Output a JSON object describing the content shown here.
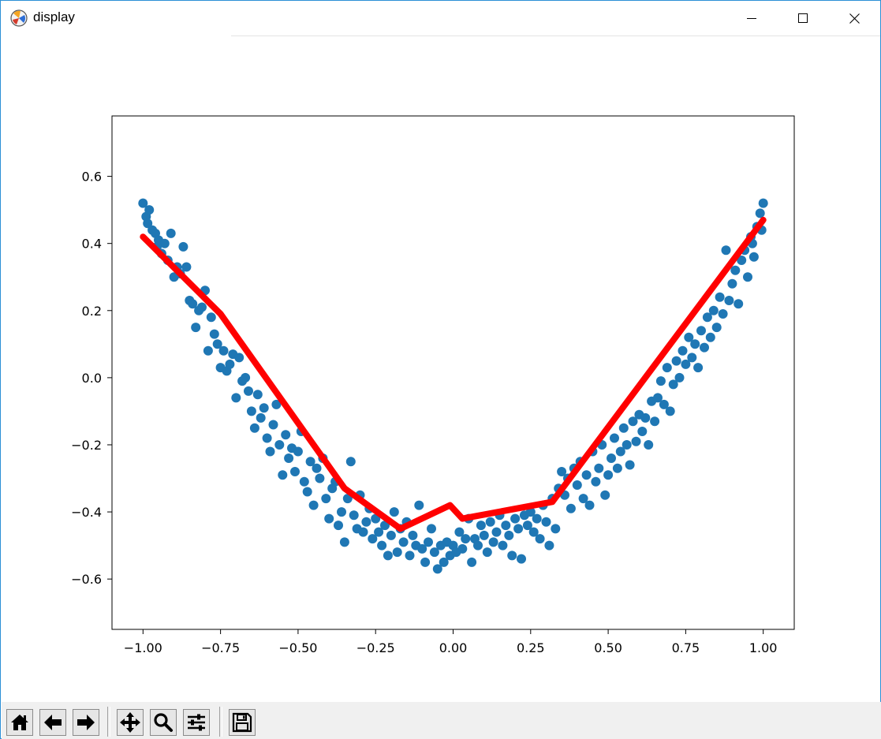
{
  "window": {
    "title": "display",
    "icons": {
      "app": "matplotlib-app-icon",
      "minimize": "minimize-icon",
      "maximize": "maximize-icon",
      "close": "close-icon"
    }
  },
  "toolbar": {
    "buttons": [
      {
        "name": "home-button",
        "icon": "home-icon"
      },
      {
        "name": "back-button",
        "icon": "arrow-left-icon"
      },
      {
        "name": "forward-button",
        "icon": "arrow-right-icon"
      },
      {
        "name": "pan-button",
        "icon": "move-icon"
      },
      {
        "name": "zoom-button",
        "icon": "search-icon"
      },
      {
        "name": "configure-subplots-button",
        "icon": "sliders-icon"
      },
      {
        "name": "save-button",
        "icon": "floppy-disk-icon"
      }
    ]
  },
  "chart_data": {
    "type": "scatter",
    "title": "",
    "xlabel": "",
    "ylabel": "",
    "xlim": [
      -1.1,
      1.1
    ],
    "ylim": [
      -0.75,
      0.78
    ],
    "xticks": [
      "−1.00",
      "−0.75",
      "−0.50",
      "−0.25",
      "0.00",
      "0.25",
      "0.50",
      "0.75",
      "1.00"
    ],
    "xtick_values": [
      -1.0,
      -0.75,
      -0.5,
      -0.25,
      0.0,
      0.25,
      0.5,
      0.75,
      1.0
    ],
    "yticks": [
      "0.6",
      "0.4",
      "0.2",
      "0.0",
      "−0.2",
      "−0.4",
      "−0.6"
    ],
    "ytick_values": [
      0.6,
      0.4,
      0.2,
      0.0,
      -0.2,
      -0.4,
      -0.6
    ],
    "grid": false,
    "scatter_color": "#1f77b4",
    "line_color": "#ff0000",
    "scatter_points": [
      [
        -1.0,
        0.52
      ],
      [
        -0.99,
        0.48
      ],
      [
        -0.98,
        0.5
      ],
      [
        -0.97,
        0.44
      ],
      [
        -0.96,
        0.43
      ],
      [
        -0.95,
        0.41
      ],
      [
        -0.94,
        0.37
      ],
      [
        -0.93,
        0.4
      ],
      [
        -0.92,
        0.35
      ],
      [
        -0.91,
        0.43
      ],
      [
        -0.9,
        0.3
      ],
      [
        -0.89,
        0.33
      ],
      [
        -0.88,
        0.31
      ],
      [
        -0.87,
        0.39
      ],
      [
        -0.86,
        0.33
      ],
      [
        -0.85,
        0.23
      ],
      [
        -0.84,
        0.22
      ],
      [
        -0.83,
        0.15
      ],
      [
        -0.82,
        0.2
      ],
      [
        -0.81,
        0.21
      ],
      [
        -0.8,
        0.26
      ],
      [
        -0.79,
        0.08
      ],
      [
        -0.78,
        0.18
      ],
      [
        -0.77,
        0.13
      ],
      [
        -0.76,
        0.1
      ],
      [
        -0.75,
        0.03
      ],
      [
        -0.74,
        0.08
      ],
      [
        -0.73,
        0.02
      ],
      [
        -0.72,
        0.04
      ],
      [
        -0.71,
        0.07
      ],
      [
        -0.7,
        -0.06
      ],
      [
        -0.69,
        0.06
      ],
      [
        -0.68,
        -0.01
      ],
      [
        -0.67,
        0.0
      ],
      [
        -0.66,
        -0.04
      ],
      [
        -0.65,
        -0.1
      ],
      [
        -0.64,
        -0.15
      ],
      [
        -0.63,
        -0.05
      ],
      [
        -0.62,
        -0.12
      ],
      [
        -0.61,
        -0.09
      ],
      [
        -0.6,
        -0.18
      ],
      [
        -0.59,
        -0.22
      ],
      [
        -0.58,
        -0.14
      ],
      [
        -0.57,
        -0.08
      ],
      [
        -0.56,
        -0.2
      ],
      [
        -0.55,
        -0.29
      ],
      [
        -0.54,
        -0.17
      ],
      [
        -0.53,
        -0.24
      ],
      [
        -0.52,
        -0.21
      ],
      [
        -0.51,
        -0.28
      ],
      [
        -0.5,
        -0.22
      ],
      [
        -0.49,
        -0.16
      ],
      [
        -0.48,
        -0.31
      ],
      [
        -0.47,
        -0.34
      ],
      [
        -0.46,
        -0.25
      ],
      [
        -0.45,
        -0.38
      ],
      [
        -0.44,
        -0.27
      ],
      [
        -0.43,
        -0.3
      ],
      [
        -0.42,
        -0.24
      ],
      [
        -0.41,
        -0.36
      ],
      [
        -0.4,
        -0.42
      ],
      [
        -0.39,
        -0.33
      ],
      [
        -0.38,
        -0.31
      ],
      [
        -0.37,
        -0.44
      ],
      [
        -0.36,
        -0.4
      ],
      [
        -0.35,
        -0.49
      ],
      [
        -0.34,
        -0.36
      ],
      [
        -0.33,
        -0.25
      ],
      [
        -0.32,
        -0.41
      ],
      [
        -0.31,
        -0.45
      ],
      [
        -0.3,
        -0.35
      ],
      [
        -0.29,
        -0.46
      ],
      [
        -0.28,
        -0.43
      ],
      [
        -0.27,
        -0.39
      ],
      [
        -0.26,
        -0.48
      ],
      [
        -0.25,
        -0.42
      ],
      [
        -0.24,
        -0.46
      ],
      [
        -0.23,
        -0.5
      ],
      [
        -0.22,
        -0.44
      ],
      [
        -0.21,
        -0.53
      ],
      [
        -0.2,
        -0.47
      ],
      [
        -0.19,
        -0.4
      ],
      [
        -0.18,
        -0.52
      ],
      [
        -0.17,
        -0.45
      ],
      [
        -0.16,
        -0.49
      ],
      [
        -0.15,
        -0.43
      ],
      [
        -0.14,
        -0.53
      ],
      [
        -0.13,
        -0.47
      ],
      [
        -0.12,
        -0.5
      ],
      [
        -0.11,
        -0.38
      ],
      [
        -0.1,
        -0.51
      ],
      [
        -0.09,
        -0.55
      ],
      [
        -0.08,
        -0.49
      ],
      [
        -0.07,
        -0.45
      ],
      [
        -0.06,
        -0.52
      ],
      [
        -0.05,
        -0.57
      ],
      [
        -0.04,
        -0.5
      ],
      [
        -0.03,
        -0.55
      ],
      [
        -0.02,
        -0.49
      ],
      [
        -0.01,
        -0.53
      ],
      [
        0.0,
        -0.5
      ],
      [
        0.01,
        -0.52
      ],
      [
        0.02,
        -0.46
      ],
      [
        0.03,
        -0.51
      ],
      [
        0.04,
        -0.48
      ],
      [
        0.05,
        -0.42
      ],
      [
        0.06,
        -0.55
      ],
      [
        0.07,
        -0.48
      ],
      [
        0.08,
        -0.5
      ],
      [
        0.09,
        -0.44
      ],
      [
        0.1,
        -0.47
      ],
      [
        0.11,
        -0.52
      ],
      [
        0.12,
        -0.43
      ],
      [
        0.13,
        -0.49
      ],
      [
        0.14,
        -0.46
      ],
      [
        0.15,
        -0.41
      ],
      [
        0.16,
        -0.5
      ],
      [
        0.17,
        -0.44
      ],
      [
        0.18,
        -0.47
      ],
      [
        0.19,
        -0.53
      ],
      [
        0.2,
        -0.42
      ],
      [
        0.21,
        -0.45
      ],
      [
        0.22,
        -0.54
      ],
      [
        0.23,
        -0.41
      ],
      [
        0.24,
        -0.44
      ],
      [
        0.25,
        -0.4
      ],
      [
        0.26,
        -0.46
      ],
      [
        0.27,
        -0.42
      ],
      [
        0.28,
        -0.48
      ],
      [
        0.29,
        -0.38
      ],
      [
        0.3,
        -0.43
      ],
      [
        0.31,
        -0.5
      ],
      [
        0.32,
        -0.36
      ],
      [
        0.33,
        -0.45
      ],
      [
        0.34,
        -0.33
      ],
      [
        0.35,
        -0.28
      ],
      [
        0.36,
        -0.35
      ],
      [
        0.37,
        -0.3
      ],
      [
        0.38,
        -0.39
      ],
      [
        0.39,
        -0.27
      ],
      [
        0.4,
        -0.32
      ],
      [
        0.41,
        -0.25
      ],
      [
        0.42,
        -0.36
      ],
      [
        0.43,
        -0.29
      ],
      [
        0.44,
        -0.38
      ],
      [
        0.45,
        -0.22
      ],
      [
        0.46,
        -0.31
      ],
      [
        0.47,
        -0.27
      ],
      [
        0.48,
        -0.2
      ],
      [
        0.49,
        -0.35
      ],
      [
        0.5,
        -0.29
      ],
      [
        0.51,
        -0.24
      ],
      [
        0.52,
        -0.18
      ],
      [
        0.53,
        -0.27
      ],
      [
        0.54,
        -0.22
      ],
      [
        0.55,
        -0.15
      ],
      [
        0.56,
        -0.2
      ],
      [
        0.57,
        -0.26
      ],
      [
        0.58,
        -0.13
      ],
      [
        0.59,
        -0.19
      ],
      [
        0.6,
        -0.11
      ],
      [
        0.61,
        -0.16
      ],
      [
        0.62,
        -0.12
      ],
      [
        0.63,
        -0.2
      ],
      [
        0.64,
        -0.07
      ],
      [
        0.65,
        -0.13
      ],
      [
        0.66,
        -0.06
      ],
      [
        0.67,
        -0.01
      ],
      [
        0.68,
        -0.08
      ],
      [
        0.69,
        0.03
      ],
      [
        0.7,
        -0.1
      ],
      [
        0.71,
        -0.02
      ],
      [
        0.72,
        0.05
      ],
      [
        0.73,
        0.0
      ],
      [
        0.74,
        0.08
      ],
      [
        0.75,
        0.04
      ],
      [
        0.76,
        0.12
      ],
      [
        0.77,
        0.06
      ],
      [
        0.78,
        0.1
      ],
      [
        0.79,
        0.03
      ],
      [
        0.8,
        0.14
      ],
      [
        0.81,
        0.09
      ],
      [
        0.82,
        0.18
      ],
      [
        0.83,
        0.12
      ],
      [
        0.84,
        0.2
      ],
      [
        0.85,
        0.15
      ],
      [
        0.86,
        0.24
      ],
      [
        0.87,
        0.19
      ],
      [
        0.88,
        0.38
      ],
      [
        0.89,
        0.23
      ],
      [
        0.9,
        0.28
      ],
      [
        0.91,
        0.32
      ],
      [
        0.92,
        0.22
      ],
      [
        0.93,
        0.35
      ],
      [
        0.94,
        0.38
      ],
      [
        0.95,
        0.3
      ],
      [
        0.96,
        0.42
      ],
      [
        0.97,
        0.36
      ],
      [
        0.98,
        0.45
      ],
      [
        0.99,
        0.49
      ],
      [
        1.0,
        0.52
      ],
      [
        0.995,
        0.44
      ],
      [
        -0.985,
        0.46
      ],
      [
        0.965,
        0.4
      ],
      [
        -0.955,
        0.39
      ]
    ],
    "fit_line": [
      [
        -1.0,
        0.42
      ],
      [
        -0.75,
        0.19
      ],
      [
        -0.35,
        -0.33
      ],
      [
        -0.17,
        -0.45
      ],
      [
        -0.01,
        -0.38
      ],
      [
        0.03,
        -0.42
      ],
      [
        0.32,
        -0.37
      ],
      [
        1.0,
        0.47
      ]
    ]
  }
}
